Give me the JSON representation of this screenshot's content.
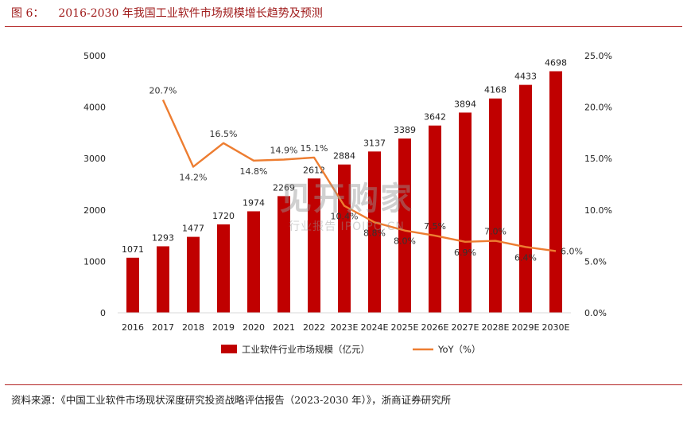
{
  "figure": {
    "number": "图 6：",
    "title": "2016-2030 年我国工业软件市场规模增长趋势及预测",
    "source": "资料来源：《中国工业软件市场现状深度研究投资战略评估报告（2023-2030 年）》，浙商证券研究所"
  },
  "watermark": {
    "line1": "见开购家",
    "line2": "行业报告 IPOIPO.CN"
  },
  "chart_data": {
    "type": "bar",
    "categories": [
      "2016",
      "2017",
      "2018",
      "2019",
      "2020",
      "2021",
      "2022",
      "2023E",
      "2024E",
      "2025E",
      "2026E",
      "2027E",
      "2028E",
      "2029E",
      "2030E"
    ],
    "series": [
      {
        "name": "工业软件行业市场规模（亿元）",
        "type": "bar",
        "axis": "left",
        "color": "#c00000",
        "values": [
          1071,
          1293,
          1477,
          1720,
          1974,
          2269,
          2612,
          2884,
          3137,
          3389,
          3642,
          3894,
          4168,
          4433,
          4698
        ],
        "labels": [
          "1071",
          "1293",
          "1477",
          "1720",
          "1974",
          "2269",
          "2612",
          "2884",
          "3137",
          "3389",
          "3642",
          "3894",
          "4168",
          "4433",
          "4698"
        ]
      },
      {
        "name": "YoY（%）",
        "type": "line",
        "axis": "right",
        "color": "#ed7d31",
        "values": [
          null,
          20.7,
          14.2,
          16.5,
          14.8,
          14.9,
          15.1,
          10.4,
          8.8,
          8.0,
          7.5,
          6.9,
          7.0,
          6.4,
          6.0
        ],
        "labels": [
          null,
          "20.7%",
          "14.2%",
          "16.5%",
          "14.8%",
          "14.9%",
          "15.1%",
          "10.4%",
          "8.8%",
          "8.0%",
          "7.5%",
          "6.9%",
          "7.0%",
          "6.4%",
          "6.0%"
        ]
      }
    ],
    "y_left": {
      "ylim": [
        0,
        5000
      ],
      "ticks": [
        "0",
        "1000",
        "2000",
        "3000",
        "4000",
        "5000"
      ]
    },
    "y_right": {
      "ylim": [
        0,
        25
      ],
      "ticks": [
        "0.0%",
        "5.0%",
        "10.0%",
        "15.0%",
        "20.0%",
        "25.0%"
      ]
    },
    "legend": {
      "position": "bottom",
      "items": [
        "工业软件行业市场规模（亿元）",
        "YoY（%）"
      ]
    },
    "grid": false
  }
}
